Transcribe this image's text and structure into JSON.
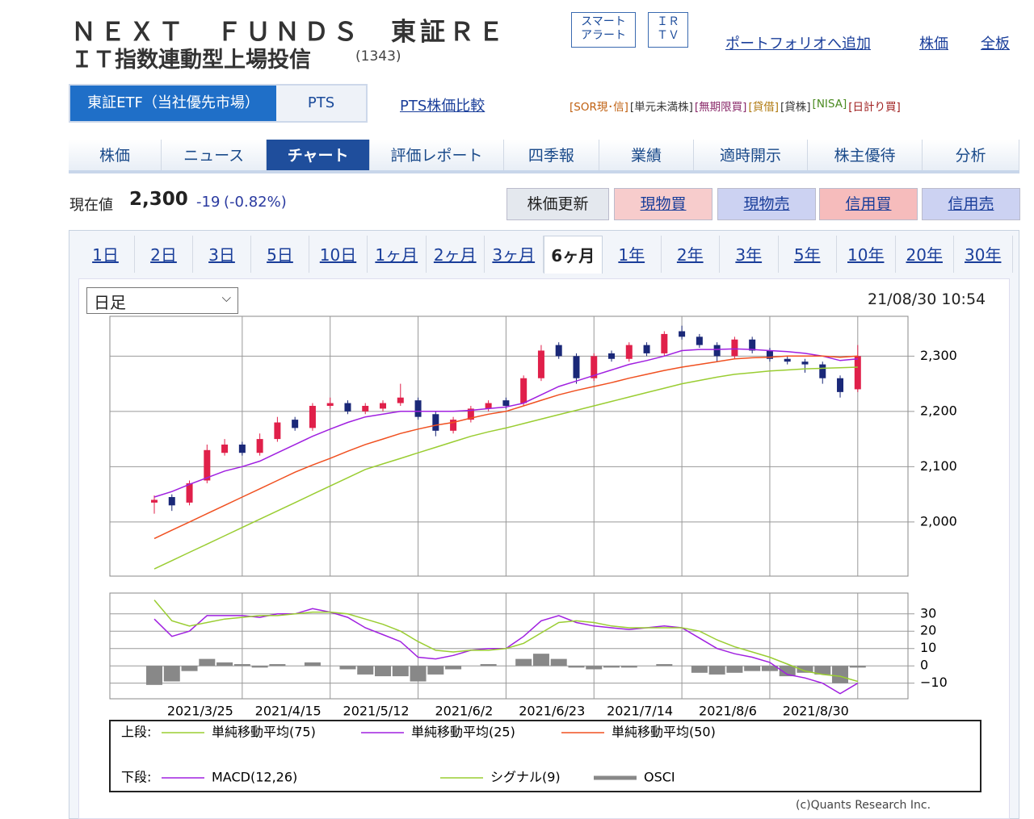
{
  "header": {
    "title_lines": [
      "ＮＥＸＴ　ＦＵＮＤＳ　東証ＲＥ",
      "ＩＴ指数連動型上場投信"
    ],
    "code": "(1343)",
    "buttons": [
      "スマート\nアラート",
      "ＩＲ\nＴＶ"
    ],
    "links": [
      "ポートフォリオへ追加",
      "株価",
      "全板"
    ]
  },
  "markets": {
    "tabs": [
      "東証ETF（当社優先市場）",
      "PTS"
    ],
    "active": 0,
    "compare_link": "PTS株価比較"
  },
  "tags": [
    {
      "text": "[SOR現･信]",
      "color": "#c06010"
    },
    {
      "text": "[単元未満株]",
      "color": "#333333"
    },
    {
      "text": "[無期限買]",
      "color": "#8a2a6a"
    },
    {
      "text": "[貸借]",
      "color": "#b07a10"
    },
    {
      "text": "[貸株]",
      "color": "#333333"
    },
    {
      "text": "[NISA]",
      "color": "#4a8a20"
    },
    {
      "text": "[日計り買]",
      "color": "#a02020"
    }
  ],
  "nav": {
    "tabs": [
      "株価",
      "ニュース",
      "チャート",
      "評価レポート",
      "四季報",
      "業績",
      "適時開示",
      "株主優待",
      "分析"
    ],
    "active": 2
  },
  "quote": {
    "label": "現在値",
    "price": "2,300",
    "change": "-19",
    "change_pct": "(-0.82%)"
  },
  "actions": [
    "株価更新",
    "現物買",
    "現物売",
    "信用買",
    "信用売"
  ],
  "periods": {
    "tabs": [
      "1日",
      "2日",
      "3日",
      "5日",
      "10日",
      "1ヶ月",
      "2ヶ月",
      "3ヶ月",
      "6ヶ月",
      "1年",
      "2年",
      "3年",
      "5年",
      "10年",
      "20年",
      "30年"
    ],
    "active": 8
  },
  "chart_controls": {
    "interval": "日足",
    "timestamp": "21/08/30 10:54"
  },
  "legend": {
    "upper": "上段:",
    "lower": "下段:"
  },
  "credit": "(c)Quants Research Inc.",
  "chart_data": [
    {
      "type": "candlestick",
      "up_color": "#e0204a",
      "down_color": "#1a2878",
      "ylim": [
        1902,
        2372
      ],
      "yticks": [
        {
          "value": 2000,
          "label": "2,000"
        },
        {
          "value": 2100,
          "label": "2,100"
        },
        {
          "value": 2200,
          "label": "2,200"
        },
        {
          "value": 2300,
          "label": "2,300"
        }
      ],
      "grid": true,
      "open": [
        2035,
        2045,
        2035,
        2075,
        2125,
        2140,
        2125,
        2150,
        2185,
        2170,
        2210,
        2215,
        2200,
        2205,
        2215,
        2220,
        2195,
        2165,
        2185,
        2205,
        2220,
        2215,
        2260,
        2320,
        2300,
        2260,
        2305,
        2295,
        2320,
        2305,
        2345,
        2335,
        2320,
        2300,
        2330,
        2310,
        2295,
        2290,
        2285,
        2260,
        2240
      ],
      "high": [
        2048,
        2050,
        2075,
        2140,
        2150,
        2145,
        2160,
        2190,
        2190,
        2215,
        2225,
        2220,
        2215,
        2220,
        2250,
        2225,
        2200,
        2190,
        2210,
        2220,
        2225,
        2265,
        2320,
        2325,
        2305,
        2305,
        2310,
        2325,
        2325,
        2345,
        2355,
        2340,
        2325,
        2335,
        2335,
        2315,
        2300,
        2295,
        2290,
        2265,
        2320
      ],
      "low": [
        2015,
        2020,
        2030,
        2070,
        2120,
        2120,
        2120,
        2145,
        2165,
        2165,
        2205,
        2195,
        2195,
        2200,
        2210,
        2185,
        2155,
        2160,
        2180,
        2200,
        2205,
        2210,
        2255,
        2295,
        2250,
        2255,
        2290,
        2290,
        2300,
        2300,
        2330,
        2315,
        2290,
        2295,
        2305,
        2290,
        2285,
        2270,
        2250,
        2225,
        2235
      ],
      "close": [
        2040,
        2030,
        2070,
        2130,
        2140,
        2125,
        2150,
        2180,
        2170,
        2210,
        2215,
        2200,
        2210,
        2215,
        2225,
        2190,
        2165,
        2185,
        2205,
        2215,
        2210,
        2260,
        2310,
        2300,
        2260,
        2300,
        2295,
        2320,
        2305,
        2340,
        2335,
        2320,
        2300,
        2330,
        2310,
        2295,
        2290,
        2285,
        2260,
        2235,
        2300
      ],
      "series": [
        {
          "name": "単純移動平均(75)",
          "color": "#9acd32",
          "values": [
            1915,
            1930,
            1945,
            1960,
            1975,
            1990,
            2005,
            2020,
            2035,
            2050,
            2065,
            2080,
            2095,
            2105,
            2115,
            2125,
            2135,
            2145,
            2155,
            2163,
            2170,
            2178,
            2186,
            2194,
            2202,
            2210,
            2218,
            2226,
            2234,
            2242,
            2250,
            2256,
            2262,
            2267,
            2270,
            2273,
            2275,
            2277,
            2278,
            2279,
            2280
          ]
        },
        {
          "name": "単純移動平均(25)",
          "color": "#a020e0",
          "values": [
            2045,
            2055,
            2068,
            2080,
            2092,
            2100,
            2110,
            2125,
            2140,
            2155,
            2168,
            2180,
            2190,
            2195,
            2200,
            2200,
            2200,
            2200,
            2202,
            2205,
            2208,
            2215,
            2230,
            2245,
            2255,
            2265,
            2275,
            2285,
            2292,
            2300,
            2310,
            2312,
            2312,
            2313,
            2312,
            2310,
            2308,
            2305,
            2300,
            2292,
            2295
          ]
        },
        {
          "name": "単純移動平均(50)",
          "color": "#f05020",
          "values": [
            1970,
            1985,
            2000,
            2015,
            2030,
            2045,
            2060,
            2075,
            2090,
            2103,
            2115,
            2128,
            2140,
            2150,
            2160,
            2168,
            2175,
            2180,
            2188,
            2195,
            2200,
            2210,
            2220,
            2230,
            2238,
            2245,
            2252,
            2260,
            2267,
            2274,
            2280,
            2285,
            2290,
            2295,
            2297,
            2298,
            2300,
            2300,
            2300,
            2298,
            2300
          ]
        }
      ]
    },
    {
      "type": "line",
      "ylim": [
        -19,
        42
      ],
      "yticks": [
        30,
        20,
        10,
        0,
        {
          "value": -10,
          "label": "−10"
        }
      ],
      "grid": true,
      "categories": [
        null,
        null,
        null,
        null,
        null,
        "2021/3/25",
        null,
        null,
        null,
        null,
        "2021/4/15",
        null,
        null,
        null,
        null,
        "2021/5/12",
        null,
        null,
        null,
        null,
        "2021/6/2",
        null,
        null,
        null,
        null,
        "2021/6/23",
        null,
        null,
        null,
        null,
        "2021/7/14",
        null,
        null,
        null,
        null,
        "2021/8/6",
        null,
        null,
        null,
        null,
        "2021/8/30"
      ],
      "series": [
        {
          "name": "MACD(12,26)",
          "color": "#a020e0",
          "style": "line",
          "values": [
            27,
            17,
            20,
            29,
            29,
            29,
            28,
            30,
            30,
            33,
            31,
            28,
            22,
            18,
            14,
            5,
            4,
            6,
            9,
            10,
            10,
            17,
            26,
            29,
            25,
            23,
            22,
            21,
            22,
            23,
            22,
            16,
            10,
            7,
            5,
            2,
            -5,
            -7,
            -10,
            -16,
            -10
          ]
        },
        {
          "name": "シグナル(9)",
          "color": "#9acd32",
          "style": "line",
          "values": [
            38,
            26,
            23,
            25,
            27,
            28,
            29,
            29,
            30,
            31,
            31,
            30,
            27,
            24,
            20,
            14,
            9,
            8,
            9,
            9,
            10,
            13,
            19,
            25,
            26,
            25,
            23,
            22,
            22,
            22,
            22,
            20,
            15,
            11,
            8,
            5,
            1,
            -3,
            -5,
            -6,
            -9
          ]
        },
        {
          "name": "OSCI",
          "color": "#888888",
          "style": "bar",
          "values": [
            -11,
            -9,
            -3,
            4,
            2,
            1,
            -1,
            1,
            0,
            2,
            0,
            -2,
            -5,
            -6,
            -6,
            -9,
            -5,
            -2,
            0,
            1,
            0,
            4,
            7,
            4,
            -1,
            -2,
            -1,
            -1,
            0,
            1,
            0,
            -4,
            -5,
            -4,
            -3,
            -3,
            -6,
            -4,
            -5,
            -10,
            -1
          ]
        }
      ]
    }
  ]
}
